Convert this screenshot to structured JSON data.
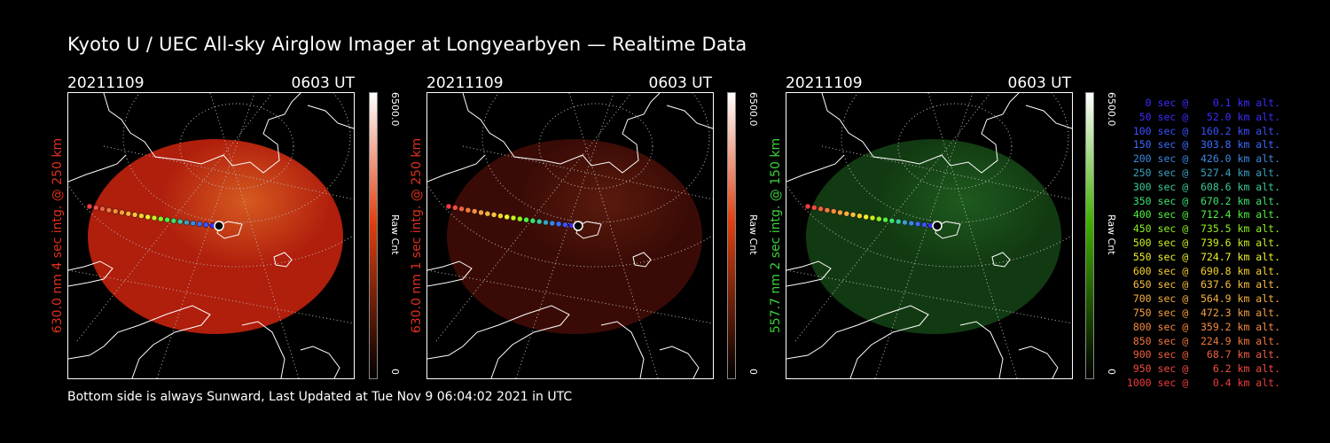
{
  "title": "Kyoto U / UEC All-sky Airglow Imager at Longyearbyen — Realtime Data",
  "footer": "Bottom side is always Sunward, Last Updated at Tue Nov  9 06:04:02 2021 in UTC",
  "panels": [
    {
      "date": "20211109",
      "time": "0603 UT",
      "ylabel": "630.0 nm 4 sec intg. @ 250 km",
      "ylabel_color": "#e0301e",
      "cbar_max": "6500.0",
      "cbar_min": "0",
      "cbar_unit": "Raw Cnt",
      "cbar_color": "#e04010",
      "disk_color": "#b01e0c",
      "disk_intensity": 1.0
    },
    {
      "date": "20211109",
      "time": "0603 UT",
      "ylabel": "630.0 nm 1 sec intg. @ 250 km",
      "ylabel_color": "#e0301e",
      "cbar_max": "6500.0",
      "cbar_min": "0",
      "cbar_unit": "Raw Cnt",
      "cbar_color": "#e04010",
      "disk_color": "#3a0b06",
      "disk_intensity": 0.45
    },
    {
      "date": "20211109",
      "time": "0603 UT",
      "ylabel": "557.7 nm 2 sec intg. @ 150 km",
      "ylabel_color": "#3cd23c",
      "cbar_max": "6500.0",
      "cbar_min": "0",
      "cbar_unit": "Raw Cnt",
      "cbar_color": "#40b000",
      "disk_color": "#123a12",
      "disk_intensity": 0.55
    }
  ],
  "legend": [
    {
      "text": "   0 sec @    0.1 km alt.",
      "color": "#3c2cff"
    },
    {
      "text": "  50 sec @   52.0 km alt.",
      "color": "#3c2cff"
    },
    {
      "text": " 100 sec @  160.2 km alt.",
      "color": "#3c50ff"
    },
    {
      "text": " 150 sec @  303.8 km alt.",
      "color": "#3c6cff"
    },
    {
      "text": " 200 sec @  426.0 km alt.",
      "color": "#3c88e0"
    },
    {
      "text": " 250 sec @  527.4 km alt.",
      "color": "#3ca0c0"
    },
    {
      "text": " 300 sec @  608.6 km alt.",
      "color": "#3cc89c"
    },
    {
      "text": " 350 sec @  670.2 km alt.",
      "color": "#40e070"
    },
    {
      "text": " 400 sec @  712.4 km alt.",
      "color": "#50f040"
    },
    {
      "text": " 450 sec @  735.5 km alt.",
      "color": "#90f020"
    },
    {
      "text": " 500 sec @  739.6 km alt.",
      "color": "#c8f020"
    },
    {
      "text": " 550 sec @  724.7 km alt.",
      "color": "#f0f030"
    },
    {
      "text": " 600 sec @  690.8 km alt.",
      "color": "#f8d030"
    },
    {
      "text": " 650 sec @  637.6 km alt.",
      "color": "#f8c040"
    },
    {
      "text": " 700 sec @  564.9 km alt.",
      "color": "#f8b040"
    },
    {
      "text": " 750 sec @  472.3 km alt.",
      "color": "#f8a040"
    },
    {
      "text": " 800 sec @  359.2 km alt.",
      "color": "#f88c40"
    },
    {
      "text": " 850 sec @  224.9 km alt.",
      "color": "#f07840"
    },
    {
      "text": " 900 sec @   68.7 km alt.",
      "color": "#f06040"
    },
    {
      "text": " 950 sec @    6.2 km alt.",
      "color": "#f04c40"
    },
    {
      "text": "1000 sec @    0.4 km alt.",
      "color": "#f03c3c"
    }
  ]
}
